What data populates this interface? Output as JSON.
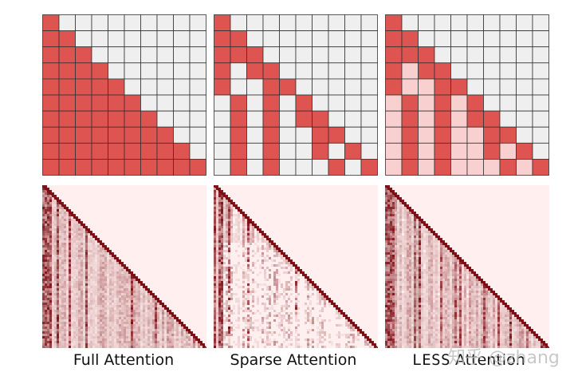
{
  "colors": {
    "active": "#dd5450",
    "partial": "#f8d0d0",
    "inactive": "#efefef",
    "gridline": "#333333",
    "heat_bg": "#fff0ef",
    "heat_dark": "#7a0a10"
  },
  "grid_size": 10,
  "panels": [
    {
      "caption": "Full Attention",
      "rows": [
        [
          0
        ],
        [
          0,
          1
        ],
        [
          0,
          1,
          2
        ],
        [
          0,
          1,
          2,
          3
        ],
        [
          0,
          1,
          2,
          3,
          4
        ],
        [
          0,
          1,
          2,
          3,
          4,
          5
        ],
        [
          0,
          1,
          2,
          3,
          4,
          5,
          6
        ],
        [
          0,
          1,
          2,
          3,
          4,
          5,
          6,
          7
        ],
        [
          0,
          1,
          2,
          3,
          4,
          5,
          6,
          7,
          8
        ],
        [
          0,
          1,
          2,
          3,
          4,
          5,
          6,
          7,
          8,
          9
        ]
      ],
      "partial_rows": [
        [],
        [],
        [],
        [],
        [],
        [],
        [],
        [],
        [],
        []
      ]
    },
    {
      "caption": "Sparse Attention",
      "rows": [
        [
          0
        ],
        [
          0,
          1
        ],
        [
          0,
          1,
          2
        ],
        [
          0,
          2,
          3
        ],
        [
          0,
          3,
          4
        ],
        [
          1,
          3,
          5
        ],
        [
          1,
          3,
          5,
          6
        ],
        [
          1,
          3,
          6,
          7
        ],
        [
          1,
          3,
          6,
          8
        ],
        [
          1,
          3,
          7,
          9
        ]
      ],
      "partial_rows": [
        [],
        [],
        [],
        [],
        [],
        [],
        [],
        [],
        [],
        []
      ]
    },
    {
      "caption_prefix": "LESS",
      "caption_suffix": " Attention",
      "rows": [
        [
          0
        ],
        [
          0,
          1
        ],
        [
          0,
          1,
          2
        ],
        [
          0,
          2,
          3
        ],
        [
          0,
          3,
          4
        ],
        [
          1,
          3,
          5
        ],
        [
          1,
          3,
          5,
          6
        ],
        [
          1,
          3,
          6,
          7
        ],
        [
          1,
          3,
          6,
          8
        ],
        [
          1,
          3,
          7,
          9
        ]
      ],
      "partial_rows": [
        [],
        [],
        [],
        [
          1
        ],
        [
          1,
          2
        ],
        [
          0,
          2,
          4
        ],
        [
          0,
          2,
          4
        ],
        [
          0,
          2,
          4,
          5
        ],
        [
          0,
          2,
          4,
          5,
          7
        ],
        [
          0,
          2,
          4,
          5,
          6,
          8
        ]
      ]
    }
  ],
  "watermark": "知乎 @zhang"
}
